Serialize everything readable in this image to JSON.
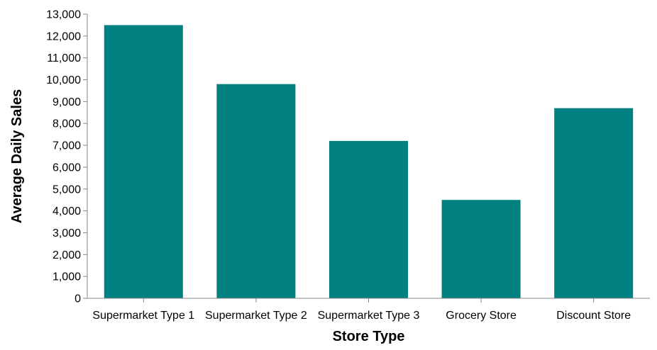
{
  "chart_data": {
    "type": "bar",
    "title": "",
    "xlabel": "Store Type",
    "ylabel": "Average Daily Sales",
    "categories": [
      "Supermarket Type 1",
      "Supermarket Type 2",
      "Supermarket Type 3",
      "Grocery Store",
      "Discount Store"
    ],
    "values": [
      12500,
      9800,
      7200,
      4500,
      8700
    ],
    "ylim": [
      0,
      13000
    ],
    "yticks": [
      "0",
      "1,000",
      "2,000",
      "3,000",
      "4,000",
      "5,000",
      "6,000",
      "7,000",
      "8,000",
      "9,000",
      "10,000",
      "11,000",
      "12,000",
      "13,000"
    ],
    "bar_color": "#008080",
    "grid": false,
    "legend": "none"
  }
}
